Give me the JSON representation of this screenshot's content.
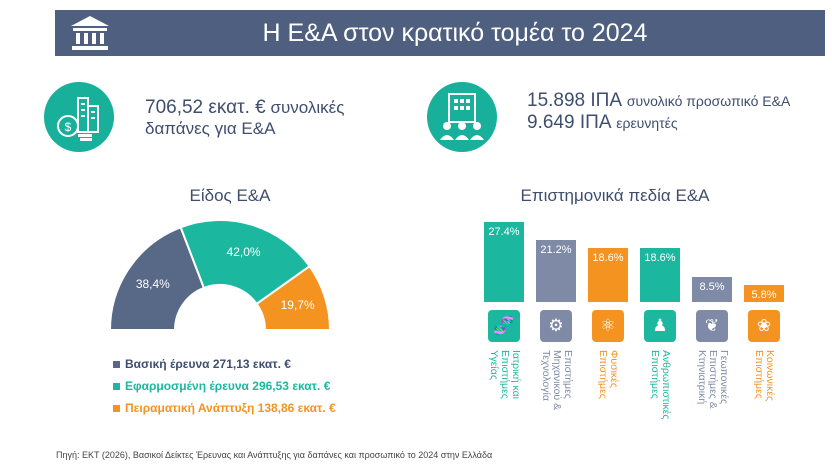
{
  "header": {
    "title": "Η Ε&Α στον κρατικό τομέα το 2024",
    "icon": "institution-icon"
  },
  "stats": {
    "expenditure_value": "706,52 εκατ. €",
    "expenditure_line1_rest": "συνολικές",
    "expenditure_line2": "δαπάνες για Ε&Α",
    "personnel_value": "15.898 ΙΠΑ",
    "personnel_rest": "συνολικό προσωπικό Ε&Α",
    "researchers_value": "9.649 ΙΠΑ",
    "researchers_rest": "ερευνητές"
  },
  "colors": {
    "navy": "#586887",
    "teal": "#1bb89f",
    "orange": "#f4931f",
    "slate": "#7e8aa6",
    "header": "#4e5f7f"
  },
  "chart_data": [
    {
      "type": "pie",
      "title": "Είδος Ε&Α",
      "slices": [
        {
          "label": "Βασική έρευνα",
          "value": 38.4,
          "display": "38,4%",
          "amount": "271,13 εκατ. €",
          "color": "#586887"
        },
        {
          "label": "Εφαρμοσμένη έρευνα",
          "value": 42.0,
          "display": "42,0%",
          "amount": "296,53 εκατ. €",
          "color": "#1bb89f"
        },
        {
          "label": "Πειραματική Ανάπτυξη",
          "value": 19.7,
          "display": "19,7%",
          "amount": "138,86 εκατ. €",
          "color": "#f4931f"
        }
      ]
    },
    {
      "type": "bar",
      "title": "Επιστημονικά πεδία Ε&Α",
      "categories": [
        "Ιατρική και Επιστήμες Υγείας",
        "Επιστήμες Μηχανικού & Τεχνολογία",
        "Φυσικές Επιστήμες",
        "Ανθρωπιστικές Επιστήμες",
        "Γεωπονικές Επιστήμες & Κτηνιατρική",
        "Κοινωνικές Επιστήμες"
      ],
      "label_lines": [
        [
          "Ιατρική και",
          "Επιστήμες",
          "Υγείας"
        ],
        [
          "Επιστήμες",
          "Μηχανικού &",
          "Τεχνολογία"
        ],
        [
          "Φυσικές",
          "Επιστήμες"
        ],
        [
          "Ανθρωπιστικές",
          "Επιστήμες"
        ],
        [
          "Γεωπονικές",
          "Επιστήμες &",
          "Κτηνιατρική"
        ],
        [
          "Κοινωνικές",
          "Επιστήμες"
        ]
      ],
      "values": [
        27.4,
        21.2,
        18.6,
        18.6,
        8.5,
        5.8
      ],
      "value_labels": [
        "27.4%",
        "21.2%",
        "18.6%",
        "18.6%",
        "8.5%",
        "5.8%"
      ],
      "colors": [
        "#1bb89f",
        "#7e8aa6",
        "#f4931f",
        "#1bb89f",
        "#7e8aa6",
        "#f4931f"
      ],
      "icons": [
        "dna-icon",
        "engineering-gear-icon",
        "atom-icon",
        "person-head-icon",
        "agriculture-plant-icon",
        "social-group-icon"
      ]
    }
  ],
  "footer": {
    "source": "Πηγή: ΕΚΤ (2026), Βασικοί Δείκτες Έρευνας και Ανάπτυξης για δαπάνες και προσωπικό το 2024 στην Ελλάδα"
  }
}
